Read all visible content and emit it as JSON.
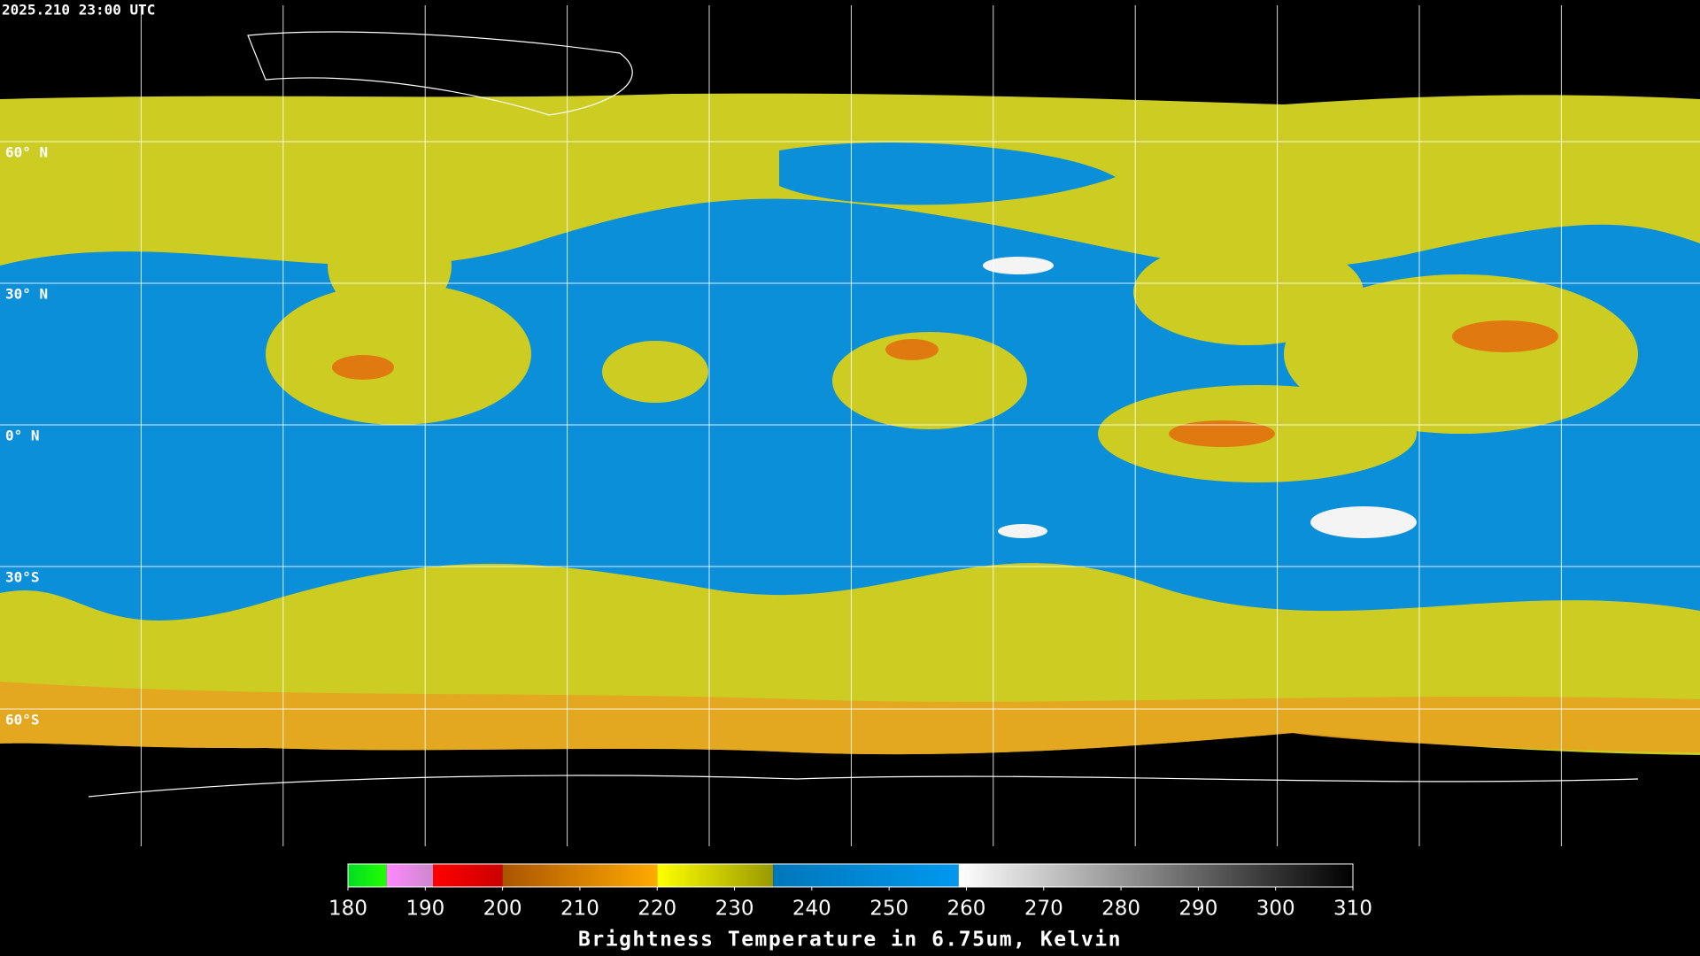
{
  "header": {
    "timestamp": "2025.210 23:00 UTC"
  },
  "map": {
    "lat_labels": [
      "60° N",
      "30° N",
      "0° N",
      "30°S",
      "60°S"
    ]
  },
  "colorbar": {
    "title": "Brightness Temperature in 6.75um, Kelvin",
    "range": [
      180,
      310
    ],
    "ticks": [
      180,
      190,
      200,
      210,
      220,
      230,
      240,
      250,
      260,
      270,
      280,
      290,
      300,
      310
    ],
    "segments": [
      {
        "from": 180,
        "to": 185,
        "colors": [
          "#00dd22",
          "#22ff00"
        ]
      },
      {
        "from": 185,
        "to": 191,
        "colors": [
          "#ff88ff",
          "#cc88cc"
        ]
      },
      {
        "from": 191,
        "to": 200,
        "colors": [
          "#ff0000",
          "#cc0000"
        ]
      },
      {
        "from": 200,
        "to": 220,
        "colors": [
          "#aa5500",
          "#ffaa00"
        ]
      },
      {
        "from": 220,
        "to": 235,
        "colors": [
          "#ffff00",
          "#999900"
        ]
      },
      {
        "from": 235,
        "to": 259,
        "colors": [
          "#0077bb",
          "#0099ee"
        ]
      },
      {
        "from": 259,
        "to": 310,
        "colors": [
          "#ffffff",
          "#000000"
        ]
      }
    ]
  }
}
